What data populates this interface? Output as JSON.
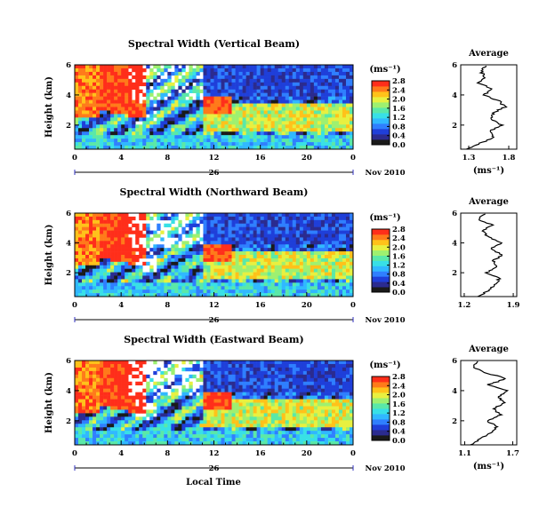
{
  "page": {
    "x_axis_title": "Local Time",
    "date_label": "Nov 2010",
    "day_label": "26"
  },
  "colorbar_colors": [
    "#1a1a1a",
    "#2b2b8f",
    "#1f3fd9",
    "#2f7fff",
    "#30b8ff",
    "#38e0e6",
    "#5ae8a8",
    "#9ef070",
    "#e8f040",
    "#ffc21a",
    "#ff7a1a",
    "#ff2e1a"
  ],
  "chart_data": [
    {
      "type": "heatmap",
      "title": "Spectral Width (Vertical Beam)",
      "ylabel": "Height (km)",
      "x_ticks": [
        "0",
        "4",
        "8",
        "12",
        "16",
        "20",
        "0"
      ],
      "y_ticks": [
        "2",
        "4",
        "6"
      ],
      "xlim": [
        0,
        24
      ],
      "ylim": [
        0.4,
        6.0
      ],
      "units": "(ms⁻¹)",
      "colorbar_ticks": [
        "0.0",
        "0.4",
        "0.8",
        "1.2",
        "1.6",
        "2.0",
        "2.4",
        "2.8"
      ],
      "average_profile": {
        "title": "Average",
        "xlabel": "(ms⁻¹)",
        "x_ticks": [
          "1.3",
          "1.8"
        ],
        "xlim": [
          1.2,
          1.9
        ],
        "y_ticks": [
          "2",
          "4",
          "6"
        ],
        "height_km": [
          0.4,
          0.8,
          1.2,
          1.6,
          2.0,
          2.4,
          2.8,
          3.2,
          3.6,
          4.0,
          4.4,
          4.8,
          5.2,
          5.6,
          6.0
        ],
        "values": [
          1.28,
          1.45,
          1.62,
          1.55,
          1.72,
          1.58,
          1.6,
          1.75,
          1.68,
          1.48,
          1.6,
          1.42,
          1.5,
          1.45,
          1.52
        ]
      }
    },
    {
      "type": "heatmap",
      "title": "Spectral Width (Northward Beam)",
      "ylabel": "Height (km)",
      "x_ticks": [
        "0",
        "4",
        "8",
        "12",
        "16",
        "20",
        "0"
      ],
      "y_ticks": [
        "2",
        "4",
        "6"
      ],
      "xlim": [
        0,
        24
      ],
      "ylim": [
        0.4,
        6.0
      ],
      "units": "(ms⁻¹)",
      "colorbar_ticks": [
        "0.0",
        "0.4",
        "0.8",
        "1.2",
        "1.6",
        "2.0",
        "2.4",
        "2.8"
      ],
      "average_profile": {
        "title": "Average",
        "xlabel": "",
        "x_ticks": [
          "1.2",
          "1.9"
        ],
        "xlim": [
          1.15,
          1.95
        ],
        "y_ticks": [
          "2",
          "4",
          "6"
        ],
        "height_km": [
          0.4,
          0.8,
          1.2,
          1.6,
          2.0,
          2.4,
          2.8,
          3.2,
          3.6,
          4.0,
          4.4,
          4.8,
          5.2,
          5.6,
          6.0
        ],
        "values": [
          1.4,
          1.55,
          1.65,
          1.7,
          1.52,
          1.68,
          1.6,
          1.75,
          1.58,
          1.72,
          1.55,
          1.45,
          1.6,
          1.4,
          1.5
        ]
      }
    },
    {
      "type": "heatmap",
      "title": "Spectral Width (Eastward Beam)",
      "ylabel": "Height (km)",
      "x_ticks": [
        "0",
        "4",
        "8",
        "12",
        "16",
        "20",
        "0"
      ],
      "y_ticks": [
        "2",
        "4",
        "6"
      ],
      "xlim": [
        0,
        24
      ],
      "ylim": [
        0.4,
        6.0
      ],
      "units": "(ms⁻¹)",
      "colorbar_ticks": [
        "0.0",
        "0.4",
        "0.8",
        "1.2",
        "1.6",
        "2.0",
        "2.4",
        "2.8"
      ],
      "average_profile": {
        "title": "Average",
        "xlabel": "(ms⁻¹)",
        "x_ticks": [
          "1.1",
          "1.7"
        ],
        "xlim": [
          1.05,
          1.75
        ],
        "y_ticks": [
          "2",
          "4",
          "6"
        ],
        "height_km": [
          0.4,
          0.8,
          1.2,
          1.6,
          2.0,
          2.4,
          2.8,
          3.2,
          3.6,
          4.0,
          4.4,
          4.8,
          5.2,
          5.6,
          6.0
        ],
        "values": [
          1.18,
          1.3,
          1.42,
          1.5,
          1.38,
          1.55,
          1.45,
          1.6,
          1.52,
          1.65,
          1.4,
          1.62,
          1.35,
          1.2,
          1.3
        ]
      }
    }
  ]
}
